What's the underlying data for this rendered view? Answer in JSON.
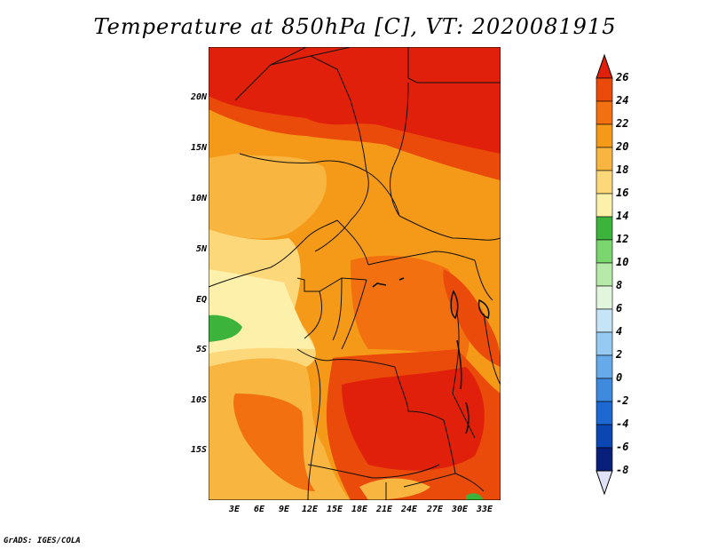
{
  "title": "Temperature at 850hPa [C], VT: 2020081915",
  "footer": "GrADS: IGES/COLA",
  "lat_labels": [
    "20N",
    "15N",
    "10N",
    "5N",
    "EQ",
    "5S",
    "10S",
    "15S"
  ],
  "lon_labels": [
    "3E",
    "6E",
    "9E",
    "12E",
    "15E",
    "18E",
    "21E",
    "24E",
    "27E",
    "30E",
    "33E"
  ],
  "colorbar": {
    "labels": [
      "26",
      "24",
      "22",
      "20",
      "18",
      "16",
      "14",
      "12",
      "10",
      "8",
      "6",
      "4",
      "2",
      "0",
      "-2",
      "-4",
      "-6",
      "-8"
    ],
    "colors": [
      "#e0200a",
      "#ea4a0a",
      "#f27010",
      "#f59a18",
      "#f8b640",
      "#fdd87a",
      "#fdf0aa",
      "#3cb43c",
      "#7ad66e",
      "#b6eaa8",
      "#e2f6de",
      "#c6e4f8",
      "#96caf2",
      "#66aaea",
      "#3e8adc",
      "#1e68d2",
      "#0c46b2",
      "#08207a",
      "#e0e0f6"
    ]
  },
  "map_colors": {
    "c24": "#e0200a",
    "c22": "#ea4a0a",
    "c20": "#f27010",
    "c18": "#f59a18",
    "c16": "#f8b640",
    "c14": "#fdd87a",
    "c12": "#fdf0aa",
    "green": "#3cb43c"
  }
}
